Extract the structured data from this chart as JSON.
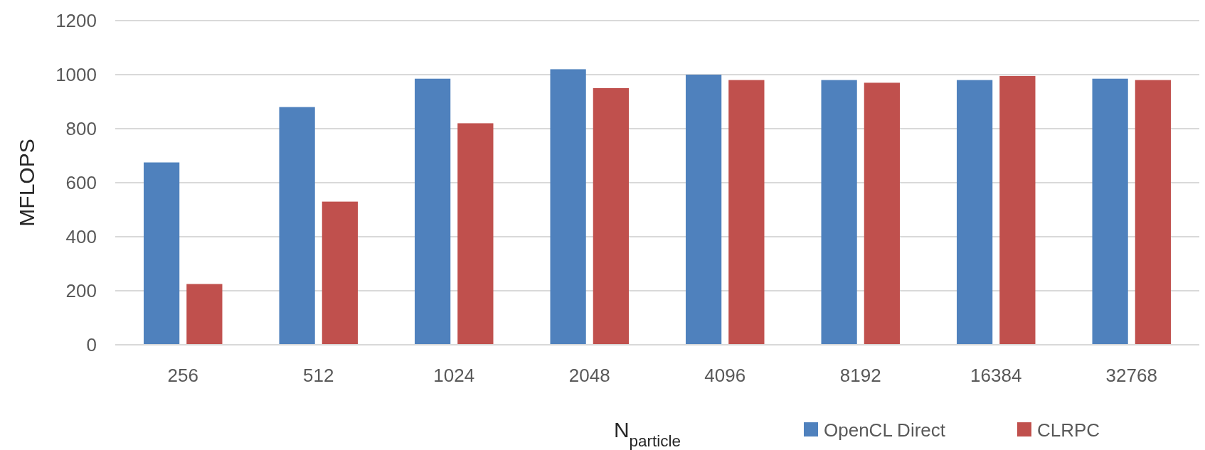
{
  "chart_data": {
    "type": "bar",
    "xlabel": "N$_{particle}$",
    "ylabel": "MFLOPS",
    "categories": [
      "256",
      "512",
      "1024",
      "2048",
      "4096",
      "8192",
      "16384",
      "32768"
    ],
    "series": [
      {
        "name": "OpenCL Direct",
        "color": "#4f81bd",
        "values": [
          675,
          880,
          985,
          1020,
          1000,
          980,
          980,
          985
        ]
      },
      {
        "name": "CLRPC",
        "color": "#c0504d",
        "values": [
          225,
          530,
          820,
          950,
          980,
          970,
          995,
          980
        ]
      }
    ],
    "ylim": [
      0,
      1200
    ],
    "yticks": [
      0,
      200,
      400,
      600,
      800,
      1000,
      1200
    ],
    "grid": "y",
    "legend": "bottom right"
  }
}
